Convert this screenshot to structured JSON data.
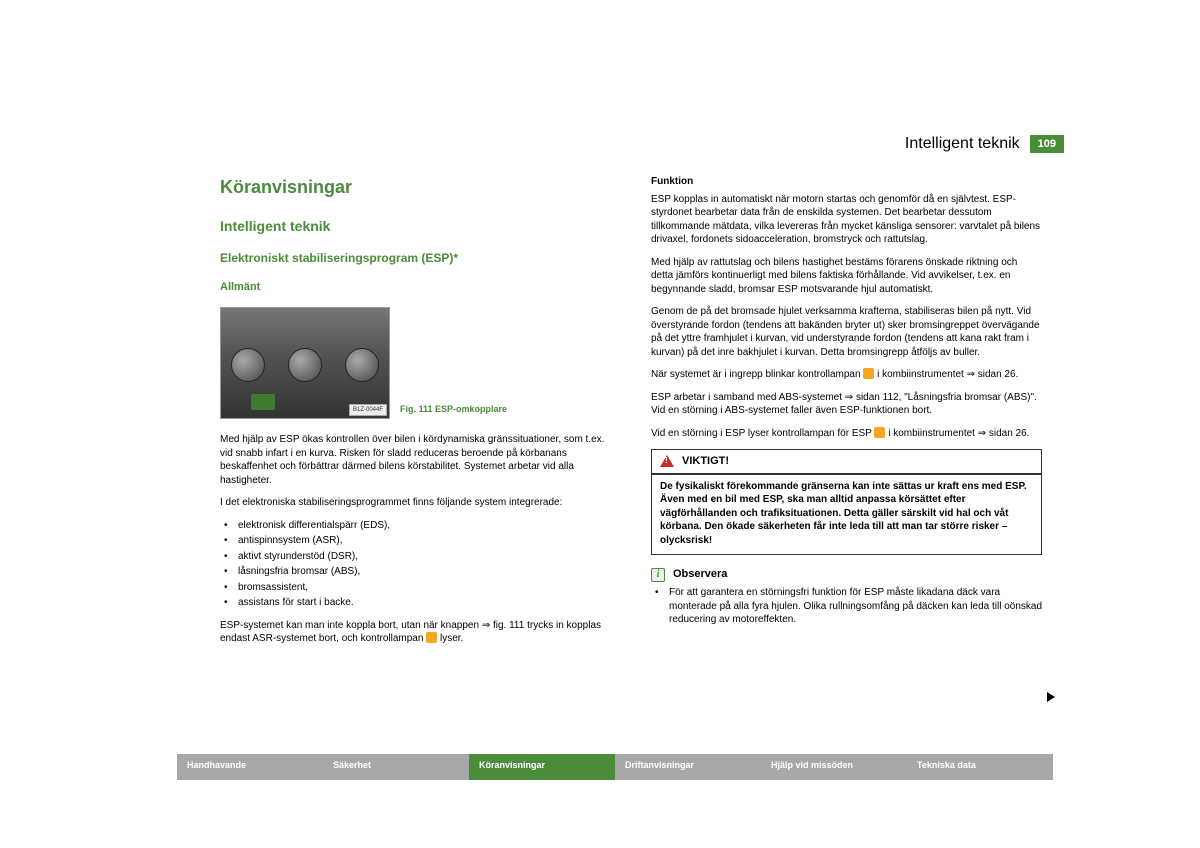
{
  "page": {
    "header_title": "Intelligent teknik",
    "number": "109"
  },
  "left": {
    "h1": "Köranvisningar",
    "h2": "Intelligent teknik",
    "h3": "Elektroniskt stabiliseringsprogram (ESP)*",
    "h4": "Allmänt",
    "fig_tag": "B1Z-0044F",
    "fig_caption": "Fig. 111  ESP-omkopplare",
    "p1": "Med hjälp av ESP ökas kontrollen över bilen i kördynamiska gränssituationer, som t.ex. vid snabb infart i en kurva. Risken för sladd reduceras beroende på körbanans beskaffenhet och förbättrar därmed bilens körstabilitet. Systemet arbetar vid alla hastigheter.",
    "p2": "I det elektroniska stabiliseringsprogrammet finns följande system integrerade:",
    "items": [
      "elektronisk differentialspärr (EDS),",
      "antispinnsystem (ASR),",
      "aktivt styrunderstöd (DSR),",
      "låsningsfria bromsar (ABS),",
      "bromsassistent,",
      "assistans för start i backe."
    ],
    "p3a": "ESP-systemet kan man inte koppla bort, utan när knappen ",
    "p3_ref": "⇒ fig. 111",
    "p3b": " trycks in kopplas endast ASR-systemet bort, och kontrollampan ",
    "p3c": " lyser."
  },
  "right": {
    "h5": "Funktion",
    "p1": "ESP kopplas in automatiskt när motorn startas och genomför då en självtest. ESP-styrdonet bearbetar data från de enskilda systemen. Det bearbetar dessutom tillkommande mätdata, vilka levereras från mycket känsliga sensorer: varvtalet på bilens drivaxel, fordonets sidoacceleration, bromstryck och rattutslag.",
    "p2": "Med hjälp av rattutslag och bilens hastighet bestäms förarens önskade riktning och detta jämförs kontinuerligt med bilens faktiska förhållande. Vid avvikelser, t.ex. en begynnande sladd, bromsar ESP motsvarande hjul automatiskt.",
    "p3": "Genom de på det bromsade hjulet verksamma krafterna, stabiliseras bilen på nytt. Vid överstyrande fordon (tendens att bakänden bryter ut) sker bromsingreppet övervägande på det yttre framhjulet i kurvan, vid understyrande fordon (tendens att kana rakt fram i kurvan) på det inre bakhjulet i kurvan. Detta bromsingrepp åtföljs av buller.",
    "p4a": "När systemet är i ingrepp blinkar kontrollampan ",
    "p4b": " i kombiinstrumentet ⇒ sidan 26.",
    "p5": "ESP arbetar i samband med ABS-systemet ⇒ sidan 112, \"Låsningsfria bromsar (ABS)\". Vid en störning i ABS-systemet faller även ESP-funktionen bort.",
    "p6a": "Vid en störning i ESP lyser kontrollampan för ESP ",
    "p6b": " i kombiinstrumentet ⇒ sidan 26.",
    "warn_title": "VIKTIGT!",
    "warn_body": "De fysikaliskt förekommande gränserna kan inte sättas ur kraft ens med ESP. Även med en bil med ESP, ska man alltid anpassa körsättet efter vägförhållanden och trafiksituationen. Detta gäller särskilt vid hal och våt körbana. Den ökade säkerheten får inte leda till att man tar större risker – olycksrisk!",
    "obs_title": "Observera",
    "obs_body": "För att garantera en störningsfri funktion för ESP måste likadana däck vara monterade på alla fyra hjulen. Olika rullningsomfång på däcken kan leda till oönskad reducering av motoreffekten."
  },
  "nav": {
    "items": [
      {
        "label": "Handhavande",
        "active": false
      },
      {
        "label": "Säkerhet",
        "active": false
      },
      {
        "label": "Köranvisningar",
        "active": true
      },
      {
        "label": "Driftanvisningar",
        "active": false
      },
      {
        "label": "Hjälp vid missöden",
        "active": false
      },
      {
        "label": "Tekniska data",
        "active": false
      }
    ]
  }
}
